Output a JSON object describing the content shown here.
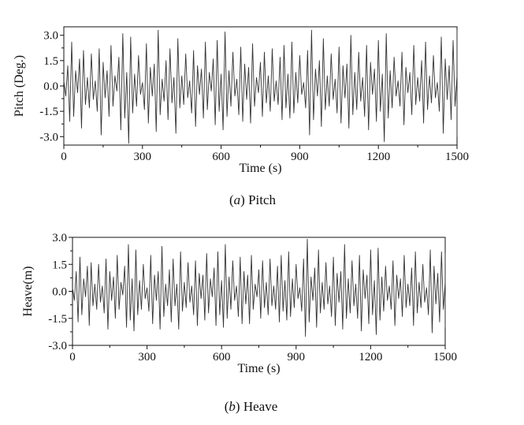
{
  "chart_data": [
    {
      "type": "line",
      "caption_letter": "a",
      "caption_text": "Pitch",
      "xlabel": "Time (s)",
      "ylabel": "Pitch (Deg.)",
      "xlim": [
        0,
        1500
      ],
      "ylim": [
        -3.5,
        3.5
      ],
      "xticks": [
        "0",
        "300",
        "600",
        "900",
        "1200",
        "1500"
      ],
      "yticks": [
        "3.0",
        "1.5",
        "0.0",
        "-1.5",
        "-3.0"
      ],
      "yticks_values": [
        3.0,
        1.5,
        0.0,
        -1.5,
        -3.0
      ],
      "line_color": "#333333",
      "series": [
        {
          "sample_step_s": 7.5,
          "values": [
            0.3,
            -0.6,
            1.2,
            -2.1,
            2.6,
            -1.8,
            0.9,
            -0.4,
            1.6,
            -2.5,
            2.1,
            -1.1,
            0.5,
            -1.3,
            1.9,
            -0.8,
            0.3,
            -1.5,
            2.2,
            -2.9,
            1.4,
            -0.7,
            0.9,
            -1.8,
            2.4,
            -1.2,
            0.6,
            -0.3,
            1.7,
            -2.6,
            3.1,
            -1.9,
            0.8,
            -3.4,
            2.9,
            -1.6,
            0.7,
            -1.2,
            1.8,
            -0.5,
            0.2,
            -1.4,
            2.5,
            -2.2,
            1.1,
            -0.6,
            1.3,
            -2.7,
            3.3,
            -1.7,
            0.4,
            -0.9,
            1.5,
            -2.0,
            2.2,
            -1.0,
            0.5,
            -2.8,
            2.8,
            -1.3,
            0.6,
            -1.1,
            1.9,
            -0.7,
            0.3,
            -1.6,
            2.1,
            -2.4,
            1.2,
            -0.5,
            1.0,
            -1.9,
            2.6,
            -1.4,
            0.8,
            -0.3,
            1.6,
            -2.3,
            2.7,
            -1.5,
            0.7,
            -2.6,
            3.2,
            -1.8,
            0.9,
            -1.2,
            2.0,
            -0.6,
            0.4,
            -1.7,
            2.3,
            -2.1,
            1.3,
            -0.8,
            1.1,
            -2.2,
            2.5,
            -1.2,
            0.5,
            -0.4,
            1.4,
            -1.8,
            2.0,
            -1.0,
            0.6,
            -1.5,
            2.2,
            -0.9,
            0.3,
            -1.1,
            1.7,
            -2.0,
            2.4,
            -1.3,
            0.7,
            -1.9,
            2.6,
            -1.6,
            0.8,
            -1.0,
            1.8,
            -0.5,
            0.2,
            -1.3,
            2.1,
            -2.9,
            3.3,
            -2.0,
            1.0,
            -0.6,
            1.5,
            -2.4,
            2.8,
            -1.4,
            0.6,
            -1.2,
            1.9,
            -0.8,
            0.4,
            -1.6,
            2.3,
            -2.2,
            1.2,
            -0.7,
            1.3,
            -2.5,
            3.0,
            -1.7,
            0.8,
            -1.4,
            2.0,
            -0.9,
            0.5,
            -1.8,
            2.4,
            -2.6,
            1.4,
            -0.5,
            1.0,
            -2.1,
            2.7,
            -1.5,
            0.7,
            -3.3,
            3.1,
            -1.9,
            0.9,
            -1.3,
            1.7,
            -0.6,
            0.3,
            -1.2,
            2.0,
            -2.3,
            1.1,
            -0.4,
            0.8,
            -1.7,
            2.4,
            -1.1,
            0.5,
            -0.9,
            1.5,
            -2.2,
            2.6,
            -1.4,
            0.6,
            -1.0,
            1.8,
            -0.7,
            0.2,
            -1.5,
            2.9,
            -2.8,
            1.6,
            -0.8,
            1.2,
            -2.0,
            2.7,
            -1.2,
            0.6,
            -3.0,
            3.3,
            -1.8,
            0.7,
            -1.1,
            1.9,
            -0.6,
            0.3,
            -1.4,
            2.2,
            -2.4,
            1.3,
            -0.5
          ]
        }
      ]
    },
    {
      "type": "line",
      "caption_letter": "b",
      "caption_text": "Heave",
      "xlabel": "Time (s)",
      "ylabel": "Heave(m)",
      "xlim": [
        0,
        1500
      ],
      "ylim": [
        -3.0,
        3.0
      ],
      "xticks": [
        "0",
        "300",
        "600",
        "900",
        "1200",
        "1500"
      ],
      "yticks": [
        "3.0",
        "1.5",
        "0.0",
        "-1.5",
        "-3.0"
      ],
      "yticks_values": [
        3.0,
        1.5,
        0.0,
        -1.5,
        -3.0
      ],
      "line_color": "#333333",
      "series": [
        {
          "sample_step_s": 7.5,
          "values": [
            0.2,
            -0.5,
            1.1,
            -1.7,
            1.9,
            -1.3,
            0.7,
            -0.3,
            1.4,
            -1.9,
            1.6,
            -0.8,
            0.4,
            -1.0,
            1.5,
            -0.6,
            0.3,
            -1.2,
            1.8,
            -2.1,
            1.1,
            -0.5,
            0.8,
            -1.5,
            2.0,
            -1.0,
            0.5,
            -0.2,
            1.4,
            -2.0,
            2.6,
            -1.6,
            0.7,
            -2.2,
            2.3,
            -1.3,
            0.6,
            -1.0,
            1.5,
            -0.4,
            0.2,
            -1.1,
            2.0,
            -1.8,
            0.9,
            -0.5,
            1.1,
            -2.1,
            2.5,
            -1.4,
            0.4,
            -0.8,
            1.2,
            -1.7,
            1.8,
            -0.8,
            0.4,
            -2.1,
            2.2,
            -1.1,
            0.5,
            -0.9,
            1.6,
            -0.6,
            0.3,
            -1.3,
            1.7,
            -1.9,
            1.0,
            -0.4,
            0.9,
            -1.6,
            2.1,
            -1.2,
            0.7,
            -0.3,
            1.3,
            -1.9,
            2.2,
            -1.3,
            0.6,
            -2.0,
            2.6,
            -1.5,
            0.8,
            -1.0,
            1.7,
            -0.5,
            0.3,
            -1.4,
            1.9,
            -1.8,
            1.1,
            -0.7,
            0.9,
            -1.8,
            2.0,
            -1.0,
            0.4,
            -0.3,
            1.2,
            -1.5,
            1.7,
            -0.9,
            0.5,
            -1.3,
            1.8,
            -0.8,
            0.3,
            -1.0,
            1.4,
            -1.7,
            2.0,
            -1.1,
            0.6,
            -1.6,
            2.2,
            -1.4,
            0.7,
            -0.9,
            1.5,
            -0.4,
            0.2,
            -1.1,
            1.8,
            -2.5,
            2.9,
            -1.7,
            0.8,
            -0.5,
            1.3,
            -2.0,
            2.3,
            -1.2,
            0.5,
            -1.0,
            1.6,
            -0.7,
            0.3,
            -1.4,
            1.9,
            -1.9,
            1.0,
            -0.6,
            1.1,
            -2.1,
            2.6,
            -1.5,
            0.7,
            -1.2,
            1.7,
            -0.8,
            0.4,
            -1.5,
            2.0,
            -2.2,
            1.2,
            -0.4,
            0.9,
            -1.8,
            2.3,
            -1.3,
            0.6,
            -2.4,
            2.4,
            -1.6,
            0.8,
            -1.1,
            1.4,
            -0.5,
            0.3,
            -1.0,
            1.7,
            -1.9,
            0.9,
            -0.4,
            0.7,
            -1.4,
            2.0,
            -0.9,
            0.4,
            -0.8,
            1.3,
            -1.9,
            2.2,
            -1.2,
            0.5,
            -0.9,
            1.5,
            -0.6,
            0.2,
            -1.3,
            2.3,
            -2.3,
            1.4,
            -0.7,
            1.0,
            -1.7,
            2.2,
            -1.0,
            0.5,
            -2.0,
            2.1,
            -1.5,
            0.6,
            -0.9,
            1.6,
            -0.5,
            0.3,
            -1.2,
            1.9,
            -2.0,
            1.1,
            -0.4
          ]
        }
      ]
    }
  ]
}
